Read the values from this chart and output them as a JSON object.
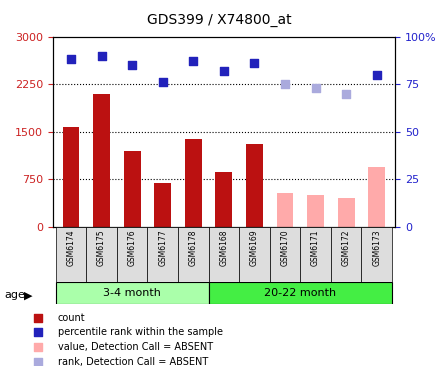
{
  "title": "GDS399 / X74800_at",
  "samples": [
    "GSM6174",
    "GSM6175",
    "GSM6176",
    "GSM6177",
    "GSM6178",
    "GSM6168",
    "GSM6169",
    "GSM6170",
    "GSM6171",
    "GSM6172",
    "GSM6173"
  ],
  "group1_label": "3-4 month",
  "group2_label": "20-22 month",
  "group1_count": 5,
  "group2_count": 6,
  "bar_values": [
    1580,
    2100,
    1200,
    690,
    1380,
    870,
    1300,
    540,
    500,
    460,
    950
  ],
  "bar_absent": [
    false,
    false,
    false,
    false,
    false,
    false,
    false,
    true,
    true,
    true,
    true
  ],
  "dot_values": [
    88,
    90,
    85,
    76,
    87,
    82,
    86,
    75,
    73,
    70,
    80
  ],
  "dot_absent": [
    false,
    false,
    false,
    false,
    false,
    false,
    false,
    true,
    true,
    true,
    false
  ],
  "ylim_left": [
    0,
    3000
  ],
  "ylim_right": [
    0,
    100
  ],
  "yticks_left": [
    0,
    750,
    1500,
    2250,
    3000
  ],
  "ytick_left_labels": [
    "0",
    "750",
    "1500",
    "2250",
    "3000"
  ],
  "yticks_right": [
    0,
    25,
    50,
    75,
    100
  ],
  "ytick_right_labels": [
    "0",
    "25",
    "50",
    "75",
    "100%"
  ],
  "hgrid_lines": [
    750,
    1500,
    2250
  ],
  "bar_color_present": "#bb1111",
  "bar_color_absent": "#ffaaaa",
  "dot_color_present": "#2222bb",
  "dot_color_absent": "#aaaadd",
  "background_color": "#ffffff",
  "tick_label_color_left": "#cc2222",
  "tick_label_color_right": "#2222cc",
  "xtick_bg_color": "#dddddd",
  "group1_color": "#aaffaa",
  "group2_color": "#44ee44",
  "legend_items": [
    {
      "color": "#bb1111",
      "label": "count"
    },
    {
      "color": "#2222bb",
      "label": "percentile rank within the sample"
    },
    {
      "color": "#ffaaaa",
      "label": "value, Detection Call = ABSENT"
    },
    {
      "color": "#aaaadd",
      "label": "rank, Detection Call = ABSENT"
    }
  ]
}
